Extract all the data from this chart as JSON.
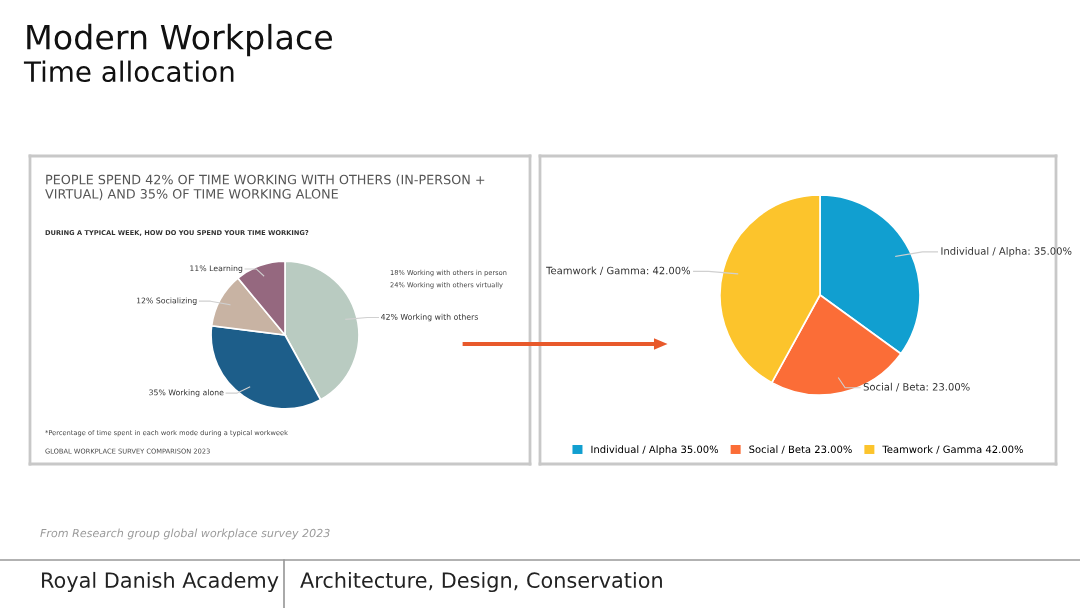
{
  "chart_data": [
    {
      "type": "pie",
      "title": "PEOPLE SPEND 42% OF TIME WORKING WITH OTHERS (IN-PERSON + VIRTUAL) AND 35% OF TIME WORKING ALONE",
      "subtitle": "DURING A TYPICAL WEEK, HOW DO YOU SPEND YOUR TIME WORKING?",
      "categories": [
        "Working with others",
        "Working alone",
        "Socializing",
        "Learning"
      ],
      "values": [
        42,
        35,
        12,
        11
      ],
      "value_labels": [
        "42%",
        "35%",
        "12%",
        "11%"
      ],
      "colors": [
        "#b9cbc1",
        "#1d5e8a",
        "#c8b3a3",
        "#95687f"
      ],
      "annotations": [
        "18% Working with others in person",
        "24% Working with others virtually",
        "*Percentage of time spent in each work mode during a typical workweek",
        "GLOBAL WORKPLACE SURVEY COMPARISON 2023"
      ]
    },
    {
      "type": "pie",
      "title": "Modern Workplace",
      "subtitle": "Time allocation",
      "categories": [
        "Individual / Alpha 35.00%",
        "Social / Beta 23.00%",
        "Teamwork / Gamma 42.00%"
      ],
      "values": [
        35,
        23,
        42
      ],
      "value_labels": [
        "Individual / Alpha: 35.00%",
        "Social / Beta: 23.00%",
        "Teamwork / Gamma: 42.00%"
      ],
      "colors": [
        "#119fd0",
        "#fb6d37",
        "#fcc42c"
      ],
      "legend": "bottom",
      "annotations": [
        "From Research group global workplace survey 2023",
        "Royal Danish Academy",
        "Architecture, Design, Conservation"
      ]
    }
  ]
}
